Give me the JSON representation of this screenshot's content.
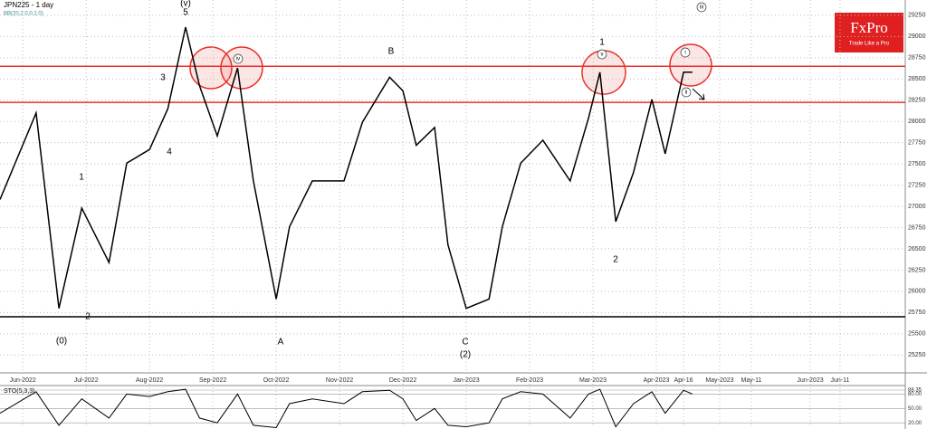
{
  "chart_data": {
    "type": "line",
    "title": "JPN225 - 1 day",
    "subtitle": "BB(20,2.0,0,2.0)",
    "brand": "FxPro",
    "brand_tagline": "Trade Like a Pro",
    "x": [
      -0.36,
      0.21,
      0.57,
      0.93,
      1.36,
      1.64,
      2.0,
      2.29,
      2.57,
      2.79,
      3.07,
      3.39,
      3.64,
      4.0,
      4.21,
      4.57,
      5.07,
      5.36,
      5.79,
      6.0,
      6.21,
      6.5,
      6.71,
      7.0,
      7.36,
      7.57,
      7.86,
      8.21,
      8.64,
      8.93,
      9.11,
      9.36,
      9.64,
      9.93,
      10.14,
      10.43,
      10.57
    ],
    "series": [
      {
        "name": "JPN225",
        "color": "#000000",
        "values": [
          27080,
          28100,
          25800,
          26980,
          26340,
          27510,
          27670,
          28150,
          29110,
          28420,
          27830,
          28630,
          27300,
          25910,
          26760,
          27300,
          27300,
          27990,
          28520,
          28360,
          27720,
          27930,
          26550,
          25800,
          25910,
          26760,
          27510,
          27780,
          27300,
          28040,
          28580,
          26820,
          27400,
          28260,
          27620,
          28580,
          28580
        ]
      }
    ],
    "xlim": [
      -0.36,
      13.93
    ],
    "xticks": [
      {
        "value": 0,
        "label": "Jun-2022"
      },
      {
        "value": 1,
        "label": "Jul-2022"
      },
      {
        "value": 2,
        "label": "Aug-2022"
      },
      {
        "value": 3,
        "label": "Sep-2022"
      },
      {
        "value": 4,
        "label": "Oct-2022"
      },
      {
        "value": 5,
        "label": "Nov-2022"
      },
      {
        "value": 6,
        "label": "Dec-2022"
      },
      {
        "value": 7,
        "label": "Jan-2023"
      },
      {
        "value": 8,
        "label": "Feb-2023"
      },
      {
        "value": 9,
        "label": "Mar-2023"
      },
      {
        "value": 10,
        "label": "Apr-2023"
      },
      {
        "value": 10.43,
        "label": "Apr-16"
      },
      {
        "value": 11,
        "label": "May-2023"
      },
      {
        "value": 11.5,
        "label": "May-11"
      },
      {
        "value": 12.43,
        "label": "Jun-2023"
      },
      {
        "value": 12.9,
        "label": "Jun-11"
      }
    ],
    "ylim": [
      25040,
      29430
    ],
    "yticks": [
      25250,
      25500,
      25750,
      26000,
      26250,
      26500,
      26750,
      27000,
      27250,
      27500,
      27750,
      28000,
      28250,
      28500,
      28750,
      29000,
      29250
    ],
    "grid": true,
    "hlines": [
      28650,
      28225,
      25700
    ],
    "hline_colors": [
      "#e8302a",
      "#e8302a",
      "#000000"
    ],
    "annotations": [
      "(v)",
      "5",
      "3",
      "4",
      "1",
      "2",
      "(0)",
      "B",
      "A",
      "C",
      "(2)",
      "1",
      "2",
      "iv",
      "v",
      "i",
      "ii",
      "iii"
    ],
    "oscillator": {
      "title": "STO(5,3,3)",
      "color": "#000000",
      "values": [
        40,
        85,
        15,
        70,
        30,
        80,
        75,
        85,
        90,
        30,
        20,
        80,
        15,
        10,
        60,
        70,
        60,
        85,
        88,
        70,
        25,
        50,
        15,
        12,
        20,
        70,
        85,
        80,
        30,
        80,
        90,
        12,
        60,
        85,
        40,
        88,
        80
      ],
      "ylim": [
        11,
        94
      ],
      "yticks": [
        {
          "value": 20,
          "label": "20.00"
        },
        {
          "value": 50,
          "label": "50.00"
        },
        {
          "value": 80,
          "label": "80.00"
        },
        88.35
      ]
    }
  }
}
